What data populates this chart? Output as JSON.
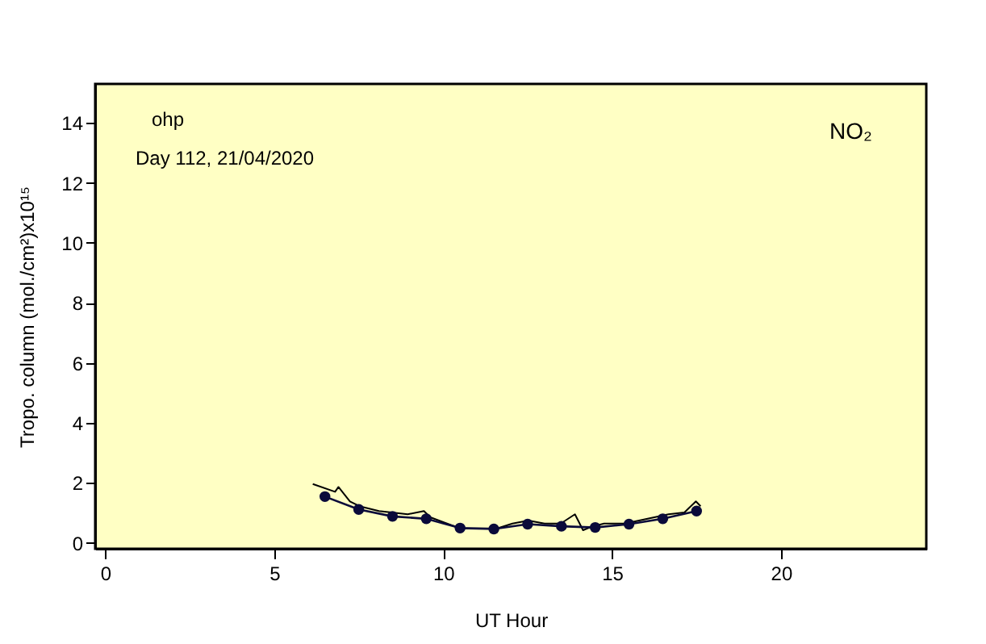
{
  "chart_data": {
    "type": "line",
    "xlabel": "UT Hour",
    "ylabel": "Tropo. column (mol./cm²)x10¹⁵",
    "annotations": [
      "ohp",
      "Day 112, 21/04/2020",
      "NO₂"
    ],
    "xlim": [
      -0.3,
      24.3
    ],
    "ylim": [
      -0.2,
      15.3
    ],
    "xticks": [
      0,
      5,
      10,
      15,
      20
    ],
    "yticks": [
      0,
      2,
      4,
      6,
      8,
      10,
      12,
      14
    ],
    "grid": false,
    "series": [
      {
        "color": "#000000",
        "marker": "none",
        "x": [
          6.14,
          6.8,
          6.9,
          7.24,
          7.52,
          8.1,
          8.95,
          9.43,
          9.62,
          10.0,
          10.5,
          10.95,
          11.6,
          12.05,
          12.52,
          13.0,
          13.48,
          13.9,
          14.14,
          14.38,
          14.76,
          15.38,
          16.05,
          16.67,
          17.14,
          17.48,
          17.62
        ],
        "values": [
          1.96,
          1.7,
          1.86,
          1.38,
          1.22,
          1.06,
          0.95,
          1.06,
          0.85,
          0.69,
          0.48,
          0.48,
          0.48,
          0.64,
          0.74,
          0.64,
          0.64,
          0.95,
          0.42,
          0.53,
          0.64,
          0.64,
          0.8,
          0.95,
          1.01,
          1.38,
          1.22
        ]
      },
      {
        "color": "#0a0a3a",
        "marker": "circle",
        "x": [
          6.5,
          7.5,
          8.5,
          9.5,
          10.5,
          11.5,
          12.5,
          13.5,
          14.5,
          15.5,
          16.5,
          17.5
        ],
        "values": [
          1.54,
          1.11,
          0.88,
          0.8,
          0.49,
          0.46,
          0.62,
          0.55,
          0.51,
          0.62,
          0.8,
          1.06
        ]
      }
    ]
  }
}
